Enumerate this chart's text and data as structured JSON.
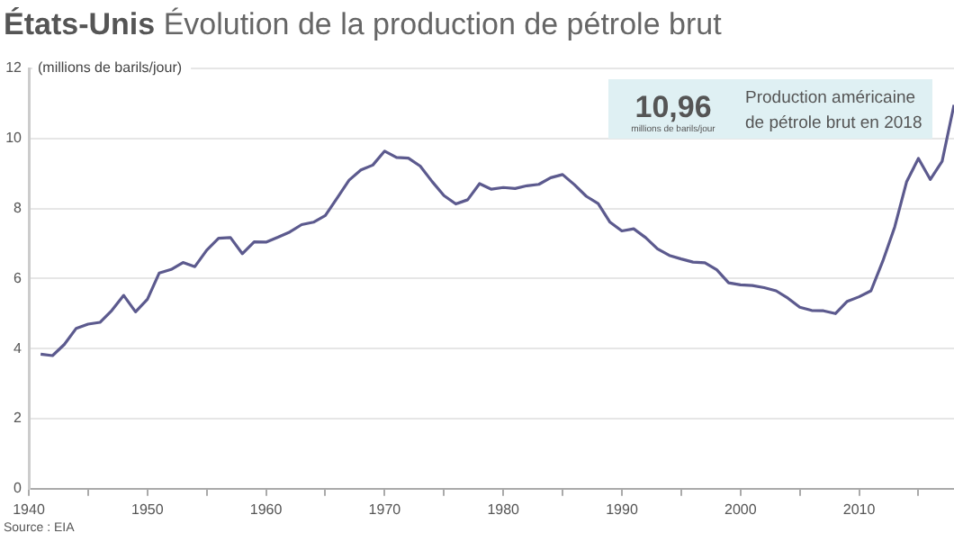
{
  "chart_data": {
    "type": "line",
    "title": "États-Unis",
    "subtitle": "Évolution de la production de pétrole brut",
    "ylabel": "(millions de barils/jour)",
    "annotations": [
      "10,96",
      "millions de barils/jour",
      "Production américaine de pétrole brut en 2018",
      "Source : EIA"
    ],
    "x": [
      1941,
      1942,
      1943,
      1944,
      1945,
      1946,
      1947,
      1948,
      1949,
      1950,
      1951,
      1952,
      1953,
      1954,
      1955,
      1956,
      1957,
      1958,
      1959,
      1960,
      1961,
      1962,
      1963,
      1964,
      1965,
      1966,
      1967,
      1968,
      1969,
      1970,
      1971,
      1972,
      1973,
      1974,
      1975,
      1976,
      1977,
      1978,
      1979,
      1980,
      1981,
      1982,
      1983,
      1984,
      1985,
      1986,
      1987,
      1988,
      1989,
      1990,
      1991,
      1992,
      1993,
      1994,
      1995,
      1996,
      1997,
      1998,
      1999,
      2000,
      2001,
      2002,
      2003,
      2004,
      2005,
      2006,
      2007,
      2008,
      2009,
      2010,
      2011,
      2012,
      2013,
      2014,
      2015,
      2016,
      2017,
      2018
    ],
    "series": [
      {
        "color": "#5c5a8e",
        "values": [
          3.84,
          3.8,
          4.12,
          4.58,
          4.7,
          4.75,
          5.09,
          5.52,
          5.05,
          5.41,
          6.16,
          6.26,
          6.46,
          6.34,
          6.81,
          7.15,
          7.17,
          6.71,
          7.05,
          7.04,
          7.18,
          7.33,
          7.54,
          7.61,
          7.8,
          8.3,
          8.81,
          9.1,
          9.24,
          9.64,
          9.46,
          9.44,
          9.21,
          8.77,
          8.37,
          8.13,
          8.25,
          8.71,
          8.55,
          8.6,
          8.57,
          8.65,
          8.69,
          8.88,
          8.97,
          8.68,
          8.35,
          8.14,
          7.61,
          7.36,
          7.42,
          7.17,
          6.85,
          6.66,
          6.56,
          6.47,
          6.45,
          6.25,
          5.88,
          5.82,
          5.8,
          5.74,
          5.65,
          5.44,
          5.18,
          5.09,
          5.08,
          5.0,
          5.35,
          5.48,
          5.65,
          6.5,
          7.47,
          8.76,
          9.43,
          8.83,
          9.35,
          10.96
        ]
      }
    ],
    "xlim": [
      1940,
      2018
    ],
    "xticks": [
      1940,
      {
        "value": 1945,
        "label": null
      },
      1950,
      {
        "value": 1955,
        "label": null
      },
      1960,
      {
        "value": 1965,
        "label": null
      },
      1970,
      {
        "value": 1975,
        "label": null
      },
      1980,
      {
        "value": 1985,
        "label": null
      },
      1990,
      {
        "value": 1995,
        "label": null
      },
      2000,
      {
        "value": 2005,
        "label": null
      },
      2010,
      {
        "value": 2015,
        "label": null
      }
    ],
    "ylim": [
      0,
      12
    ],
    "yticks": [
      0,
      2,
      4,
      6,
      8,
      10,
      12
    ],
    "grid": "y",
    "legend": false,
    "marker": "none",
    "line_style": "solid"
  }
}
